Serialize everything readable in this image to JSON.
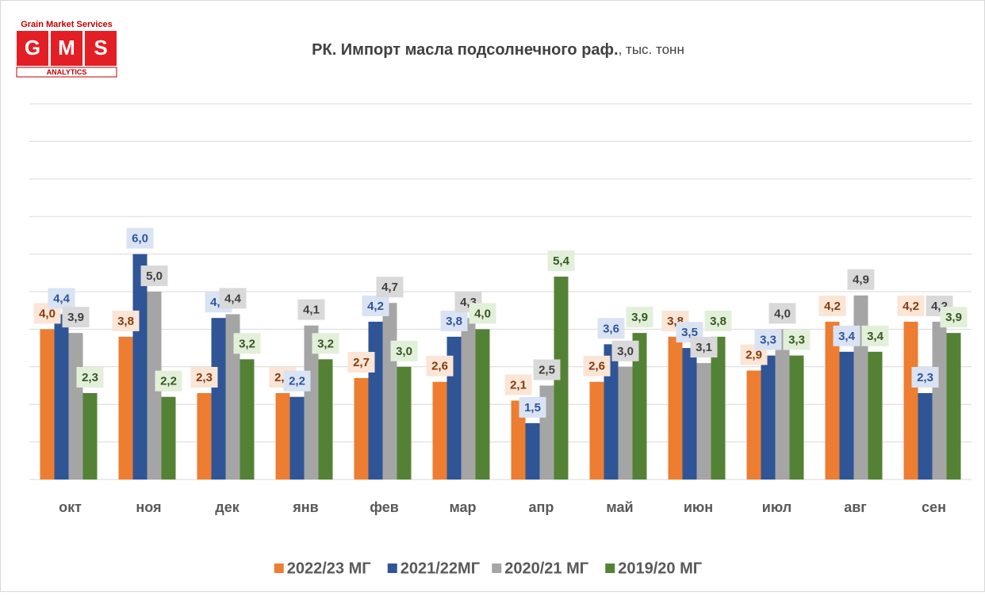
{
  "logo": {
    "top": "Grain Market Services",
    "letters": [
      "G",
      "M",
      "S"
    ],
    "bottom": "ANALYTICS"
  },
  "chart_data": {
    "type": "bar",
    "title": "РК. Импорт масла подсолнечного раф.",
    "subtitle": ", тыс. тонн",
    "categories": [
      "окт",
      "ноя",
      "дек",
      "янв",
      "фев",
      "мар",
      "апр",
      "май",
      "июн",
      "июл",
      "авг",
      "сен"
    ],
    "series": [
      {
        "name": "2022/23 МГ",
        "color": "#ED7D31",
        "label_fill": "#FBE5D6",
        "label_color": "#843C0C",
        "values": [
          4.0,
          3.8,
          2.3,
          2.3,
          2.7,
          2.6,
          2.1,
          2.6,
          3.8,
          2.9,
          4.2,
          4.2
        ],
        "value_labels": [
          "4,0",
          "3,8",
          "2,3",
          "2,3",
          "2,7",
          "2,6",
          "2,1",
          "2,6",
          "3,8",
          "2,9",
          "4,2",
          "4,2"
        ]
      },
      {
        "name": "2021/22МГ",
        "color": "#2F5597",
        "label_fill": "#DAE3F3",
        "label_color": "#2F5597",
        "values": [
          4.4,
          6.0,
          4.3,
          2.2,
          4.2,
          3.8,
          1.5,
          3.6,
          3.5,
          3.3,
          3.4,
          2.3
        ],
        "value_labels": [
          "4,4",
          "6,0",
          "4,3",
          "2,2",
          "4,2",
          "3,8",
          "1,5",
          "3,6",
          "3,5",
          "3,3",
          "3,4",
          "2,3"
        ]
      },
      {
        "name": "2020/21 МГ",
        "color": "#A5A5A5",
        "label_fill": "#D9D9D9",
        "label_color": "#404040",
        "values": [
          3.9,
          5.0,
          4.4,
          4.1,
          4.7,
          4.3,
          2.5,
          3.0,
          3.1,
          4.0,
          4.9,
          4.2
        ],
        "value_labels": [
          "3,9",
          "5,0",
          "4,4",
          "4,1",
          "4,7",
          "4,3",
          "2,5",
          "3,0",
          "3,1",
          "4,0",
          "4,9",
          "4,2"
        ]
      },
      {
        "name": "2019/20 МГ",
        "color": "#548235",
        "label_fill": "#E2F0D9",
        "label_color": "#385723",
        "values": [
          2.3,
          2.2,
          3.2,
          3.2,
          3.0,
          4.0,
          5.4,
          3.9,
          3.8,
          3.3,
          3.4,
          3.9
        ],
        "value_labels": [
          "2,3",
          "2,2",
          "3,2",
          "3,2",
          "3,0",
          "4,0",
          "5,4",
          "3,9",
          "3,8",
          "3,3",
          "3,4",
          "3,9"
        ]
      }
    ],
    "ylim": [
      0,
      10
    ],
    "yticks": [
      0,
      1,
      2,
      3,
      4,
      5,
      6,
      7,
      8,
      9,
      10
    ],
    "grid": true,
    "legend": "bottom"
  }
}
